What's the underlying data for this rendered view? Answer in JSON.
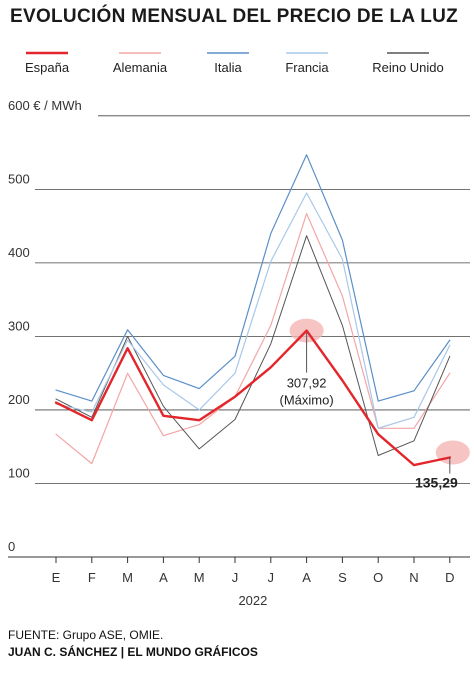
{
  "title": "EVOLUCIÓN MENSUAL DEL PRECIO DE LA LUZ",
  "source": "FUENTE: Grupo ASE, OMIE.",
  "credit_author": "JUAN C. SÁNCHEZ",
  "credit_separator": "|",
  "credit_outlet": "EL MUNDO GRÁFICOS",
  "chart_data": {
    "type": "line",
    "title": "EVOLUCIÓN MENSUAL DEL PRECIO DE LA LUZ",
    "xlabel": "2022",
    "ylabel": "€ / MWh",
    "categories": [
      "E",
      "F",
      "M",
      "A",
      "M",
      "J",
      "J",
      "A",
      "S",
      "O",
      "N",
      "D"
    ],
    "ylim": [
      0,
      600
    ],
    "yticks": [
      0,
      100,
      200,
      300,
      400,
      500,
      600
    ],
    "ytick_labels": [
      "0",
      "100",
      "200",
      "300",
      "400",
      "500",
      "600 € / MWh"
    ],
    "grid": "horizontal",
    "legend_position": "top",
    "series": [
      {
        "name": "Alemania",
        "color": "#f3a6a6",
        "width": 1.2,
        "values": [
          167,
          127,
          250,
          165,
          180,
          218,
          315,
          467,
          355,
          175,
          175,
          250
        ]
      },
      {
        "name": "Reino Unido",
        "color": "#555555",
        "width": 1.0,
        "values": [
          215,
          190,
          300,
          205,
          147,
          187,
          290,
          437,
          315,
          138,
          158,
          273
        ]
      },
      {
        "name": "Francia",
        "color": "#a9c8e8",
        "width": 1.2,
        "values": [
          208,
          197,
          295,
          234,
          200,
          250,
          402,
          495,
          405,
          175,
          190,
          288
        ]
      },
      {
        "name": "Italia",
        "color": "#5b8fc9",
        "width": 1.2,
        "values": [
          227,
          212,
          309,
          247,
          229,
          273,
          440,
          547,
          431,
          212,
          226,
          295
        ]
      },
      {
        "name": "España",
        "color": "#e3262b",
        "width": 2.4,
        "values": [
          210,
          186,
          284,
          192,
          186,
          218,
          258,
          307.92,
          240,
          167,
          125,
          135.29
        ]
      }
    ],
    "annotations": [
      {
        "series": "España",
        "month_index": 7,
        "value": "307,92",
        "note": "(Máximo)"
      },
      {
        "series": "España",
        "month_index": 11,
        "value": "135,29"
      }
    ]
  }
}
